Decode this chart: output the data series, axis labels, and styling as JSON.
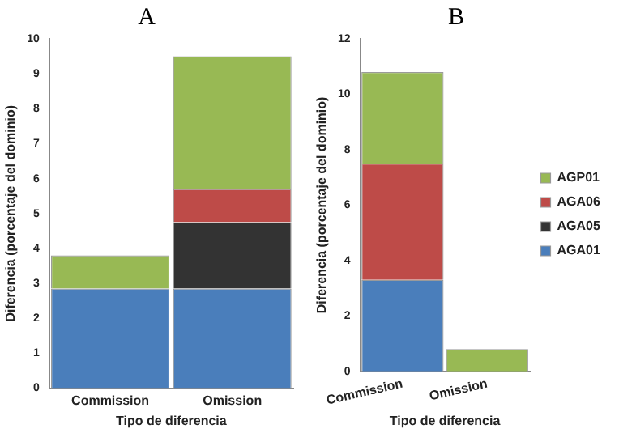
{
  "chart_data": [
    {
      "type": "bar",
      "title": "A",
      "xlabel": "Tipo de diferencia",
      "ylabel": "Diferencia (porcentaje del dominio)",
      "categories": [
        "Commission",
        "Omission"
      ],
      "stacked": true,
      "ylim": [
        0,
        10
      ],
      "yticks": [
        0,
        1,
        2,
        3,
        4,
        5,
        6,
        7,
        8,
        9,
        10
      ],
      "grid": false,
      "legend": false,
      "series": [
        {
          "color": "#4a7ebb",
          "values": [
            2.85,
            2.85
          ]
        },
        {
          "color": "#333333",
          "values": [
            0,
            1.9
          ]
        },
        {
          "color": "#be4b48",
          "values": [
            0,
            0.95
          ]
        },
        {
          "color": "#98b954",
          "values": [
            0.95,
            3.8
          ]
        }
      ]
    },
    {
      "type": "bar",
      "title": "B",
      "xlabel": "Tipo de diferencia",
      "ylabel": "Diferencia (porcentaje del dominio)",
      "categories": [
        "Commission",
        "Omission"
      ],
      "stacked": true,
      "ylim": [
        0,
        12
      ],
      "yticks": [
        0,
        2,
        4,
        6,
        8,
        10,
        12
      ],
      "grid": false,
      "legend": "right",
      "series": [
        {
          "name": "AGA01",
          "color": "#4a7ebb",
          "values": [
            3.3,
            0
          ]
        },
        {
          "name": "AGA05",
          "color": "#333333",
          "values": [
            0,
            0
          ]
        },
        {
          "name": "AGA06",
          "color": "#be4b48",
          "values": [
            4.2,
            0
          ]
        },
        {
          "name": "AGP01",
          "color": "#98b954",
          "values": [
            3.3,
            0.8
          ]
        }
      ]
    }
  ]
}
